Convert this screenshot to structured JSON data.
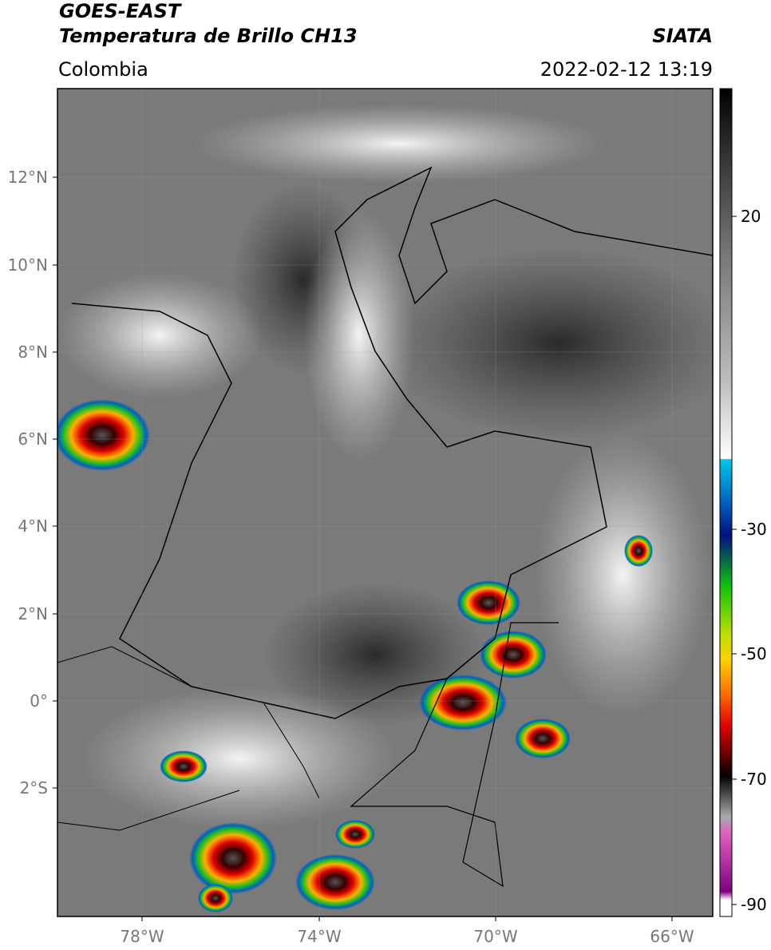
{
  "header": {
    "satellite": "GOES-EAST",
    "product": "Temperatura de Brillo CH13",
    "source": "SIATA",
    "region": "Colombia",
    "datetime": "2022-02-12 13:19"
  },
  "map": {
    "lat_ticks": [
      "12°N",
      "10°N",
      "8°N",
      "6°N",
      "4°N",
      "2°N",
      "0°",
      "2°S"
    ],
    "lon_ticks": [
      "78°W",
      "74°W",
      "70°W",
      "66°W"
    ]
  },
  "colorbar": {
    "ticks": [
      "20",
      "-30",
      "-50",
      "-70",
      "-90"
    ]
  }
}
